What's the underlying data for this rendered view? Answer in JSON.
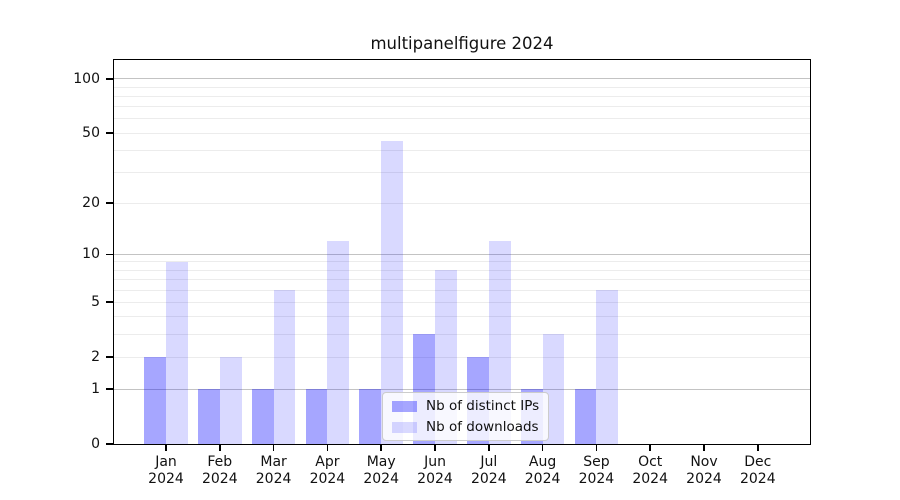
{
  "title": "multipanelfigure 2024",
  "chart_data": {
    "type": "bar",
    "title": "multipanelfigure 2024",
    "y_scale": "log1p",
    "categories": [
      "Jan 2024",
      "Feb 2024",
      "Mar 2024",
      "Apr 2024",
      "May 2024",
      "Jun 2024",
      "Jul 2024",
      "Aug 2024",
      "Sep 2024",
      "Oct 2024",
      "Nov 2024",
      "Dec 2024"
    ],
    "series": [
      {
        "name": "Nb of distinct IPs",
        "color": "rgba(0,0,255,0.35)",
        "values": [
          2,
          1,
          1,
          1,
          1,
          3,
          2,
          1,
          1,
          0,
          0,
          0
        ]
      },
      {
        "name": "Nb of downloads",
        "color": "rgba(0,0,255,0.15)",
        "values": [
          9,
          2,
          6,
          12,
          45,
          8,
          12,
          3,
          6,
          0,
          0,
          0
        ]
      }
    ],
    "yticks": [
      0,
      1,
      2,
      5,
      10,
      20,
      50,
      100
    ],
    "major_gridlines": [
      1,
      10,
      100
    ],
    "minor_gridlines": [
      2,
      3,
      4,
      5,
      6,
      7,
      8,
      9,
      20,
      30,
      40,
      50,
      60,
      70,
      80,
      90
    ],
    "ylim": [
      0,
      127
    ],
    "xlabel": "",
    "ylabel": "",
    "grid": "on",
    "legend_position": "lower center inside plot"
  }
}
